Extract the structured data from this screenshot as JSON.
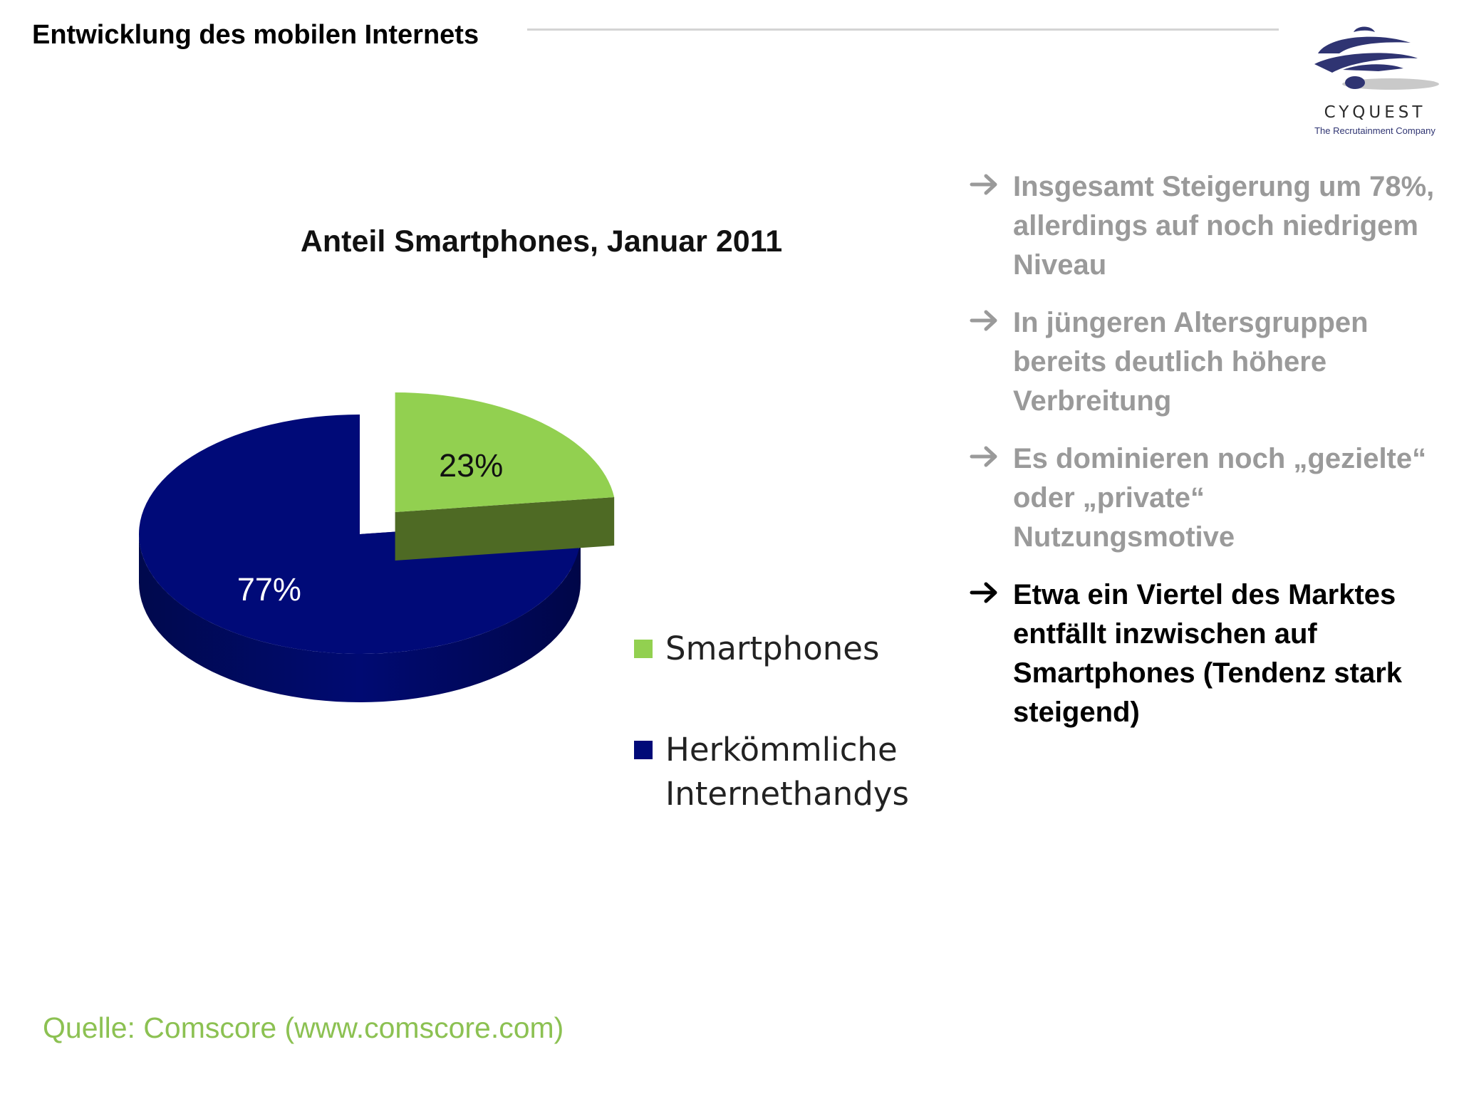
{
  "slide": {
    "title": "Entwicklung des mobilen Internets",
    "source": "Quelle: Comscore (www.comscore.com)"
  },
  "logo": {
    "name": "CYQUEST",
    "tagline": "The Recrutainment Company"
  },
  "colors": {
    "smartphones": "#92d050",
    "smartphones_side": "#4e6a24",
    "conventional": "#000a78",
    "conventional_side": "#00063f",
    "bullet_muted": "#9a9a9a",
    "bullet_active": "#000000",
    "source": "#8cc152"
  },
  "chart_data": {
    "type": "pie",
    "title": "Anteil Smartphones, Januar 2011",
    "slices": [
      {
        "name": "Smartphones",
        "value": 23,
        "label": "23%",
        "exploded": true
      },
      {
        "name": "Herkömmliche Internethandys",
        "value": 77,
        "label": "77%",
        "exploded": false
      }
    ],
    "legend": [
      {
        "lines": [
          "Smartphones"
        ]
      },
      {
        "lines": [
          "Herkömmliche",
          "Internethandys"
        ]
      }
    ],
    "legend_position": "right",
    "style": "3d"
  },
  "bullets": [
    {
      "lines": [
        "Insgesamt Steigerung um 78%,",
        "allerdings auf noch niedrigem",
        "Niveau"
      ],
      "active": false
    },
    {
      "lines": [
        "In jüngeren Altersgruppen",
        "bereits deutlich höhere",
        "Verbreitung"
      ],
      "active": false
    },
    {
      "lines": [
        "Es dominieren noch „gezielte“",
        "oder „private“",
        "Nutzungsmotive"
      ],
      "active": false
    },
    {
      "lines": [
        "Etwa ein Viertel des Marktes",
        "entfällt inzwischen auf",
        "Smartphones (Tendenz stark",
        "steigend)"
      ],
      "active": true
    }
  ]
}
